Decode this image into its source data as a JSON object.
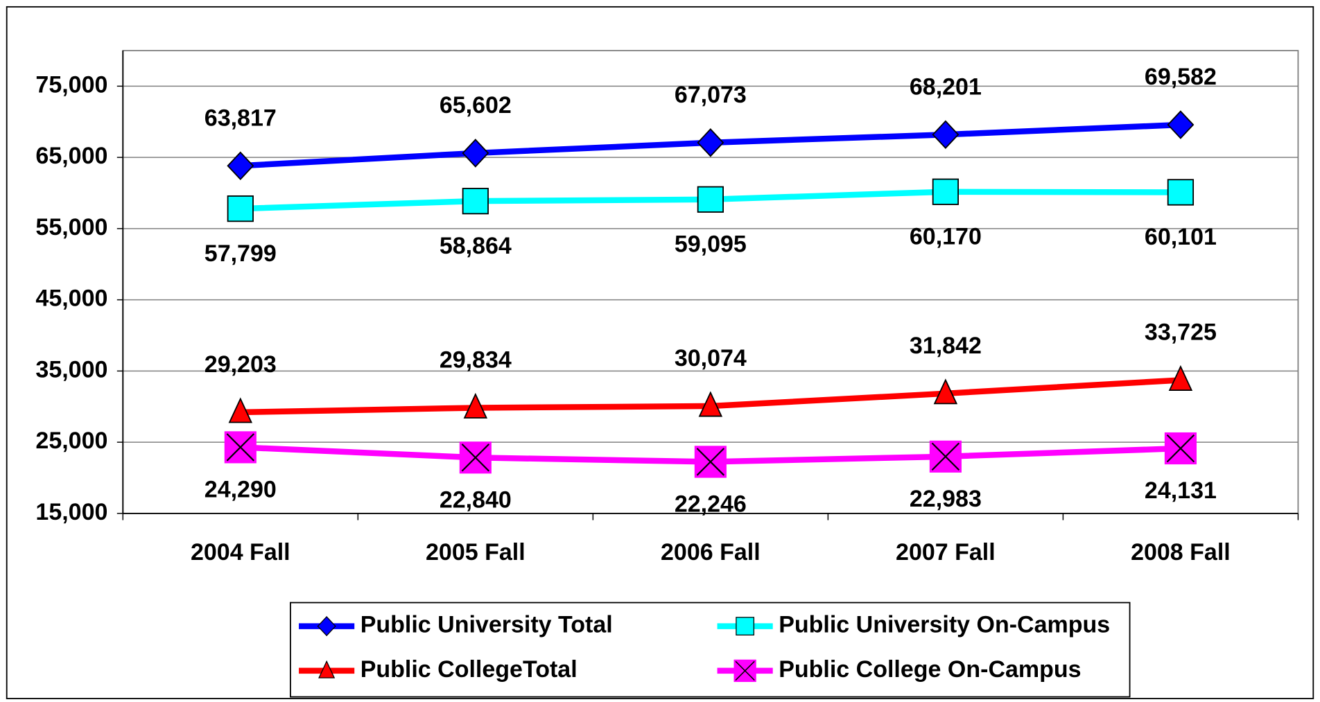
{
  "chart_data": {
    "type": "line",
    "categories": [
      "2004 Fall",
      "2005 Fall",
      "2006 Fall",
      "2007 Fall",
      "2008 Fall"
    ],
    "series": [
      {
        "name": "Public University Total",
        "color": "#0000ff",
        "values": [
          63817,
          65602,
          67073,
          68201,
          69582
        ],
        "value_labels": [
          "63,817",
          "65,602",
          "67,073",
          "68,201",
          "69,582"
        ]
      },
      {
        "name": "Public University On-Campus",
        "color": "#00ffff",
        "values": [
          57799,
          58864,
          59095,
          60170,
          60101
        ],
        "value_labels": [
          "57,799",
          "58,864",
          "59,095",
          "60,170",
          "60,101"
        ]
      },
      {
        "name": "Public CollegeTotal",
        "color": "#ff0000",
        "values": [
          29203,
          29834,
          30074,
          31842,
          33725
        ],
        "value_labels": [
          "29,203",
          "29,834",
          "30,074",
          "31,842",
          "33,725"
        ]
      },
      {
        "name": "Public College On-Campus",
        "color": "#ff00ff",
        "values": [
          24290,
          22840,
          22246,
          22983,
          24131
        ],
        "value_labels": [
          "24,290",
          "22,840",
          "22,246",
          "22,983",
          "24,131"
        ]
      }
    ],
    "ylim": [
      15000,
      80000
    ],
    "yticks": [
      {
        "value": 15000,
        "label": "15,000"
      },
      {
        "value": 25000,
        "label": "25,000"
      },
      {
        "value": 35000,
        "label": "35,000"
      },
      {
        "value": 45000,
        "label": "45,000"
      },
      {
        "value": 55000,
        "label": "55,000"
      },
      {
        "value": 65000,
        "label": "65,000"
      },
      {
        "value": 75000,
        "label": "75,000"
      }
    ],
    "grid": true,
    "legend": "bottom"
  }
}
